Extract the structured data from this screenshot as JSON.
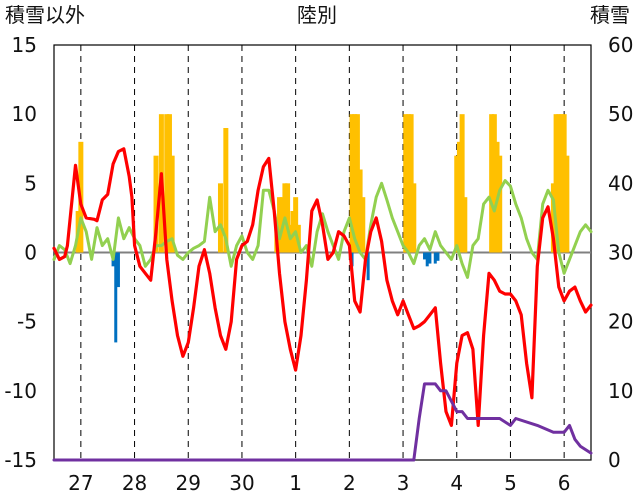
{
  "chart_data": {
    "type": "line",
    "title": "陸別",
    "ylabel_left": "積雪以外",
    "ylabel_right": "積雪",
    "x_tick_labels": [
      "27",
      "28",
      "29",
      "30",
      "1",
      "2",
      "3",
      "4",
      "5",
      "6"
    ],
    "x_range": [
      0,
      10
    ],
    "ylim_left": [
      -15,
      15
    ],
    "left_ticks": [
      15,
      10,
      5,
      0,
      -5,
      -10,
      -15
    ],
    "ylim_right": [
      0,
      60
    ],
    "right_ticks": [
      60,
      50,
      40,
      30,
      20,
      10,
      0
    ],
    "colors": {
      "temperature": "#ff0000",
      "other": "#92d050",
      "snow_depth": "#7030a0",
      "precipitation": "#ffc000",
      "negative": "#0070c0"
    },
    "series": [
      {
        "name": "temperature",
        "axis": "left",
        "x": [
          0.0,
          0.1,
          0.2,
          0.25,
          0.4,
          0.5,
          0.6,
          0.75,
          0.8,
          0.9,
          1.0,
          1.1,
          1.2,
          1.3,
          1.4,
          1.45,
          1.5,
          1.6,
          1.7,
          1.8,
          1.9,
          2.0,
          2.1,
          2.2,
          2.3,
          2.4,
          2.5,
          2.6,
          2.7,
          2.8,
          2.9,
          3.0,
          3.1,
          3.2,
          3.3,
          3.4,
          3.5,
          3.6,
          3.7,
          3.8,
          3.9,
          4.0,
          4.1,
          4.2,
          4.3,
          4.4,
          4.5,
          4.6,
          4.7,
          4.8,
          4.9,
          5.0,
          5.1,
          5.2,
          5.3,
          5.4,
          5.5,
          5.6,
          5.7,
          5.8,
          5.9,
          6.0,
          6.1,
          6.2,
          6.3,
          6.4,
          6.5,
          6.6,
          6.7,
          6.8,
          6.9,
          7.0,
          7.1,
          7.2,
          7.3,
          7.4,
          7.5,
          7.6,
          7.7,
          7.8,
          7.9,
          8.0,
          8.1,
          8.2,
          8.3,
          8.4,
          8.5,
          8.6,
          8.7,
          8.8,
          8.9,
          9.0,
          9.1,
          9.2,
          9.3,
          9.4,
          9.5,
          9.6,
          9.7,
          9.8,
          9.9,
          10.0
        ],
        "values": [
          0.3,
          -0.5,
          -0.3,
          0.5,
          6.3,
          3.5,
          2.5,
          2.4,
          2.3,
          3.8,
          4.2,
          6.4,
          7.3,
          7.5,
          5.5,
          4.0,
          0.5,
          -1.0,
          -1.5,
          -2.0,
          1.5,
          5.7,
          -0.5,
          -3.5,
          -6.0,
          -7.5,
          -6.5,
          -4.0,
          -1.0,
          0.2,
          -1.5,
          -4.0,
          -6.0,
          -7.0,
          -5.0,
          -0.5,
          0.5,
          0.8,
          2.0,
          4.5,
          6.2,
          6.8,
          3.0,
          -1.5,
          -5.0,
          -7.0,
          -8.5,
          -6.0,
          -2.0,
          3.0,
          3.8,
          2.0,
          -0.5,
          0.0,
          1.5,
          1.2,
          0.5,
          -3.5,
          -4.3,
          -0.5,
          1.5,
          2.5,
          0.8,
          -2.0,
          -3.5,
          -4.5,
          -3.5,
          -4.5,
          -5.5,
          -5.3,
          -5.0,
          -4.5,
          -4.0,
          -8.0,
          -11.5,
          -12.5,
          -8.0,
          -6.0,
          -5.8,
          -7.0,
          -12.5,
          -6.0,
          -1.5,
          -2.0,
          -2.8,
          -3.0,
          -3.0,
          -3.5,
          -4.5,
          -8.0,
          -10.5,
          -1.0,
          2.5,
          3.3,
          1.0,
          -2.5,
          -3.5,
          -2.8,
          -2.5,
          -3.5,
          -4.3,
          -3.8
        ]
      },
      {
        "name": "other",
        "axis": "left",
        "x": [
          0.0,
          0.1,
          0.2,
          0.3,
          0.4,
          0.5,
          0.6,
          0.7,
          0.8,
          0.9,
          1.0,
          1.1,
          1.2,
          1.3,
          1.4,
          1.5,
          1.6,
          1.7,
          1.8,
          1.9,
          2.0,
          2.1,
          2.2,
          2.3,
          2.4,
          2.5,
          2.6,
          2.7,
          2.8,
          2.9,
          3.0,
          3.1,
          3.2,
          3.3,
          3.4,
          3.5,
          3.6,
          3.7,
          3.8,
          3.9,
          4.0,
          4.1,
          4.2,
          4.3,
          4.4,
          4.5,
          4.6,
          4.7,
          4.8,
          4.9,
          5.0,
          5.1,
          5.2,
          5.3,
          5.4,
          5.5,
          5.6,
          5.7,
          5.8,
          5.9,
          6.0,
          6.1,
          6.2,
          6.3,
          6.4,
          6.5,
          6.6,
          6.7,
          6.8,
          6.9,
          7.0,
          7.1,
          7.2,
          7.3,
          7.4,
          7.5,
          7.6,
          7.7,
          7.8,
          7.9,
          8.0,
          8.1,
          8.2,
          8.3,
          8.4,
          8.5,
          8.6,
          8.7,
          8.8,
          8.9,
          9.0,
          9.1,
          9.2,
          9.3,
          9.4,
          9.5,
          9.6,
          9.7,
          9.8,
          9.9,
          10.0
        ],
        "values": [
          -0.5,
          0.5,
          0.2,
          -0.8,
          0.5,
          2.5,
          1.5,
          -0.5,
          1.8,
          0.5,
          1.0,
          -0.5,
          2.5,
          1.0,
          1.8,
          1.0,
          0.5,
          -1.0,
          -0.5,
          0.5,
          0.5,
          0.8,
          1.0,
          -0.2,
          -0.5,
          0.0,
          0.3,
          0.5,
          0.8,
          4.0,
          1.5,
          2.0,
          1.0,
          -1.0,
          0.5,
          1.2,
          0.0,
          -0.5,
          0.5,
          4.5,
          4.5,
          3.0,
          1.0,
          2.5,
          1.0,
          1.5,
          0.0,
          0.5,
          -1.0,
          1.5,
          2.8,
          1.5,
          0.5,
          -0.5,
          1.5,
          2.5,
          1.0,
          0.0,
          -0.5,
          2.0,
          4.0,
          5.0,
          3.8,
          2.5,
          1.5,
          0.5,
          0.0,
          -0.8,
          0.5,
          1.0,
          0.2,
          1.5,
          0.5,
          0.0,
          -0.5,
          0.5,
          -0.8,
          -1.8,
          0.5,
          1.0,
          3.5,
          4.0,
          3.0,
          4.5,
          5.2,
          4.8,
          3.5,
          2.5,
          1.0,
          0.0,
          -0.5,
          3.5,
          4.5,
          3.8,
          0.0,
          -1.5,
          -0.5,
          0.5,
          1.5,
          2.0,
          1.5
        ]
      },
      {
        "name": "snow_depth",
        "axis": "right",
        "x": [
          0.0,
          1.0,
          2.0,
          3.0,
          4.0,
          5.0,
          6.0,
          6.4,
          6.5,
          6.6,
          6.7,
          6.8,
          6.9,
          7.0,
          7.1,
          7.2,
          7.3,
          7.5,
          7.6,
          7.7,
          8.0,
          8.3,
          8.5,
          8.6,
          9.0,
          9.3,
          9.4,
          9.5,
          9.6,
          9.7,
          9.8,
          10.0
        ],
        "values": [
          0,
          0,
          0,
          0,
          0,
          0,
          0,
          0,
          0,
          0,
          0,
          6,
          11,
          11,
          11,
          10,
          10,
          7,
          7,
          6,
          6,
          6,
          5,
          6,
          5,
          4,
          4,
          4,
          5,
          3,
          2,
          1
        ]
      }
    ],
    "bars": [
      {
        "name": "precipitation",
        "axis": "left",
        "x": [
          0.45,
          0.5,
          1.9,
          2.0,
          2.1,
          2.15,
          2.2,
          3.1,
          3.2,
          4.15,
          4.2,
          4.25,
          4.3,
          4.35,
          4.4,
          4.45,
          4.5,
          4.55,
          5.55,
          5.6,
          5.65,
          5.7,
          5.75,
          6.55,
          6.6,
          6.65,
          6.7,
          7.5,
          7.55,
          7.6,
          7.65,
          8.15,
          8.2,
          8.25,
          8.3,
          9.3,
          9.35,
          9.4,
          9.45,
          9.5,
          9.55
        ],
        "values": [
          3.0,
          8.0,
          7.0,
          10.0,
          10.0,
          10.0,
          7.0,
          5.0,
          9.0,
          2.0,
          4.0,
          4.0,
          5.0,
          5.0,
          2.0,
          3.0,
          4.0,
          2.0,
          10.0,
          10.0,
          10.0,
          6.0,
          4.0,
          10.0,
          10.0,
          10.0,
          5.0,
          7.0,
          8.0,
          10.0,
          4.0,
          10.0,
          10.0,
          8.0,
          7.0,
          5.0,
          10.0,
          10.0,
          10.0,
          10.0,
          7.0
        ]
      },
      {
        "name": "negative",
        "axis": "left",
        "x": [
          1.1,
          1.15,
          1.2,
          5.55,
          5.85,
          6.9,
          6.95,
          7.0,
          7.1,
          7.15
        ],
        "values": [
          -1.0,
          -6.5,
          -2.5,
          -1.0,
          -2.0,
          -0.5,
          -1.0,
          -0.8,
          -0.8,
          -0.6
        ]
      }
    ]
  }
}
